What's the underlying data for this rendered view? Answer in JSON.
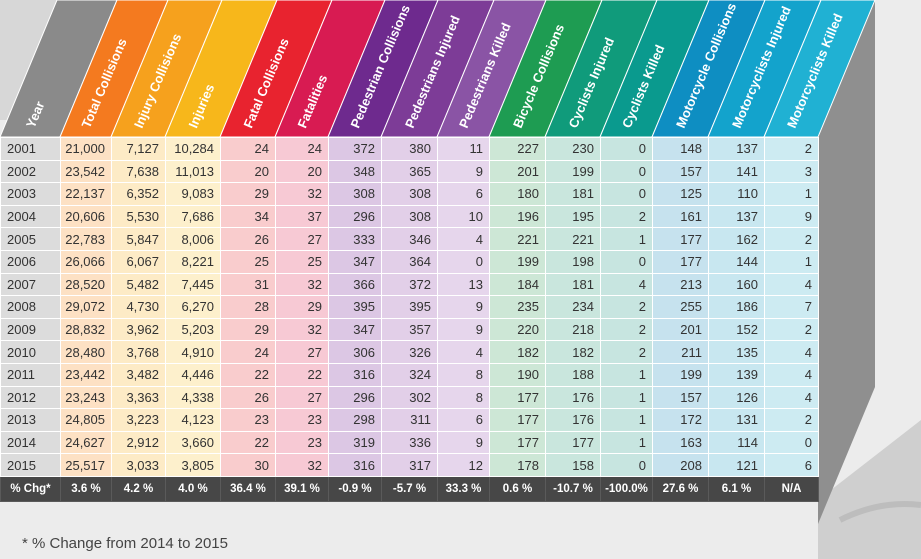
{
  "columns": [
    {
      "label": "Year",
      "color": "#8a8a8a",
      "cell": "#dcdcdc"
    },
    {
      "label": "Total Collisions",
      "color": "#f47a1f",
      "cell": "#fde1c4"
    },
    {
      "label": "Injury Collisions",
      "color": "#f6a11d",
      "cell": "#fdebc6"
    },
    {
      "label": "Injuries",
      "color": "#f7b71b",
      "cell": "#fdf0cc"
    },
    {
      "label": "Fatal Collisions",
      "color": "#e8232f",
      "cell": "#f9cccd"
    },
    {
      "label": "Fatalities",
      "color": "#d81b52",
      "cell": "#f7c9d4"
    },
    {
      "label": "Pedestrian Collisions",
      "color": "#6e2a8e",
      "cell": "#dcc7e4"
    },
    {
      "label": "Pedestrians Injured",
      "color": "#7d3c97",
      "cell": "#e2cfe8"
    },
    {
      "label": "Pedestrians Killed",
      "color": "#8a54a5",
      "cell": "#e6d6ec"
    },
    {
      "label": "Bicycle Collisions",
      "color": "#1e9c52",
      "cell": "#cde7d6"
    },
    {
      "label": "Cyclists Injured",
      "color": "#109b7b",
      "cell": "#c9e6dd"
    },
    {
      "label": "Cyclists Killed",
      "color": "#0a9a8e",
      "cell": "#c7e5e0"
    },
    {
      "label": "Motorcycle Collisions",
      "color": "#0e8ec2",
      "cell": "#c6e2ee"
    },
    {
      "label": "Motorcyclists Injured",
      "color": "#13a3cc",
      "cell": "#c8e7f0"
    },
    {
      "label": "Motorcyclists Killed",
      "color": "#20b1d3",
      "cell": "#cdebf2"
    }
  ],
  "rows": [
    [
      "2001",
      "21,000",
      "7,127",
      "10,284",
      "24",
      "24",
      "372",
      "380",
      "11",
      "227",
      "230",
      "0",
      "148",
      "137",
      "2"
    ],
    [
      "2002",
      "23,542",
      "7,638",
      "11,013",
      "20",
      "20",
      "348",
      "365",
      "9",
      "201",
      "199",
      "0",
      "157",
      "141",
      "3"
    ],
    [
      "2003",
      "22,137",
      "6,352",
      "9,083",
      "29",
      "32",
      "308",
      "308",
      "6",
      "180",
      "181",
      "0",
      "125",
      "110",
      "1"
    ],
    [
      "2004",
      "20,606",
      "5,530",
      "7,686",
      "34",
      "37",
      "296",
      "308",
      "10",
      "196",
      "195",
      "2",
      "161",
      "137",
      "9"
    ],
    [
      "2005",
      "22,783",
      "5,847",
      "8,006",
      "26",
      "27",
      "333",
      "346",
      "4",
      "221",
      "221",
      "1",
      "177",
      "162",
      "2"
    ],
    [
      "2006",
      "26,066",
      "6,067",
      "8,221",
      "25",
      "25",
      "347",
      "364",
      "0",
      "199",
      "198",
      "0",
      "177",
      "144",
      "1"
    ],
    [
      "2007",
      "28,520",
      "5,482",
      "7,445",
      "31",
      "32",
      "366",
      "372",
      "13",
      "184",
      "181",
      "4",
      "213",
      "160",
      "4"
    ],
    [
      "2008",
      "29,072",
      "4,730",
      "6,270",
      "28",
      "29",
      "395",
      "395",
      "9",
      "235",
      "234",
      "2",
      "255",
      "186",
      "7"
    ],
    [
      "2009",
      "28,832",
      "3,962",
      "5,203",
      "29",
      "32",
      "347",
      "357",
      "9",
      "220",
      "218",
      "2",
      "201",
      "152",
      "2"
    ],
    [
      "2010",
      "28,480",
      "3,768",
      "4,910",
      "24",
      "27",
      "306",
      "326",
      "4",
      "182",
      "182",
      "2",
      "211",
      "135",
      "4"
    ],
    [
      "2011",
      "23,442",
      "3,482",
      "4,446",
      "22",
      "22",
      "316",
      "324",
      "8",
      "190",
      "188",
      "1",
      "199",
      "139",
      "4"
    ],
    [
      "2012",
      "23,243",
      "3,363",
      "4,338",
      "26",
      "27",
      "296",
      "302",
      "8",
      "177",
      "176",
      "1",
      "157",
      "126",
      "4"
    ],
    [
      "2013",
      "24,805",
      "3,223",
      "4,123",
      "23",
      "23",
      "298",
      "311",
      "6",
      "177",
      "176",
      "1",
      "172",
      "131",
      "2"
    ],
    [
      "2014",
      "24,627",
      "2,912",
      "3,660",
      "22",
      "23",
      "319",
      "336",
      "9",
      "177",
      "177",
      "1",
      "163",
      "114",
      "0"
    ],
    [
      "2015",
      "25,517",
      "3,033",
      "3,805",
      "30",
      "32",
      "316",
      "317",
      "12",
      "178",
      "158",
      "0",
      "208",
      "121",
      "6"
    ]
  ],
  "change_row": [
    "% Chg*",
    "3.6 %",
    "4.2 %",
    "4.0 %",
    "36.4 %",
    "39.1 %",
    "-0.9 %",
    "-5.7 %",
    "33.3 %",
    "0.6 %",
    "-10.7 %",
    "-100.0%",
    "27.6 %",
    "6.1 %",
    "N/A"
  ],
  "footnote": "* % Change from 2014 to 2015",
  "side_color": "#8f8f8f"
}
